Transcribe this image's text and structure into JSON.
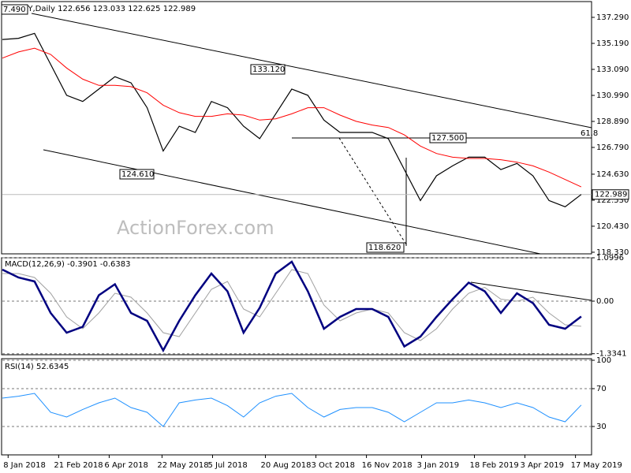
{
  "chart_data": [
    {
      "type": "line",
      "title": "EURJPY,Daily  122.656 123.033 122.625 122.989",
      "watermark": "ActionForex.com",
      "x": [
        2,
        16,
        30,
        44,
        58,
        72,
        86,
        100,
        114,
        128,
        142,
        156,
        170,
        184,
        198,
        212,
        226,
        240,
        254,
        268,
        282,
        296,
        310,
        324,
        338,
        352,
        366,
        380,
        394,
        408,
        422,
        436,
        450,
        464,
        478,
        492,
        506
      ],
      "xlim": [
        2,
        515
      ],
      "series": [
        {
          "color": "#000000",
          "values": [
            135.5,
            135.6,
            136.0,
            133.5,
            131.0,
            130.5,
            131.5,
            132.5,
            132.0,
            130.0,
            126.5,
            128.5,
            128.0,
            130.5,
            130.0,
            128.5,
            127.5,
            129.5,
            131.5,
            131.0,
            129.0,
            128.0,
            128.0,
            128.0,
            127.5,
            125.0,
            122.5,
            124.5,
            125.3,
            126.0,
            126.0,
            125.0,
            125.5,
            124.5,
            122.5,
            122.0,
            122.989
          ]
        },
        {
          "color": "#ff0000",
          "values": [
            134.0,
            134.5,
            134.8,
            134.3,
            133.2,
            132.3,
            131.8,
            131.8,
            131.7,
            131.2,
            130.2,
            129.6,
            129.3,
            129.3,
            129.5,
            129.4,
            129.0,
            129.1,
            129.5,
            130.0,
            130.0,
            129.4,
            128.9,
            128.6,
            128.4,
            127.8,
            126.9,
            126.3,
            126.0,
            125.9,
            125.9,
            125.8,
            125.6,
            125.3,
            124.8,
            124.2,
            123.6
          ]
        }
      ],
      "ylim": [
        118.2,
        138.5
      ],
      "yticks": [
        {
          "value": 137.29,
          "label": "137.290"
        },
        {
          "value": 135.19,
          "label": "135.190"
        },
        {
          "value": 133.09,
          "label": "133.090"
        },
        {
          "value": 130.99,
          "label": "130.990"
        },
        {
          "value": 128.89,
          "label": "128.890"
        },
        {
          "value": 126.79,
          "label": "126.790"
        },
        {
          "value": 124.63,
          "label": "124.630"
        },
        {
          "value": 122.53,
          "label": "122.530"
        },
        {
          "value": 120.43,
          "label": "120.430"
        },
        {
          "value": 118.33,
          "label": "118.330"
        }
      ],
      "last_price": 122.989,
      "annotations": [
        "7.490",
        "133.120",
        "124.610",
        "127.500",
        "118.620",
        "61.8"
      ]
    },
    {
      "type": "line",
      "title": "MACD(12,26,9) -0.3901 -0.6383",
      "x": [
        2,
        16,
        30,
        44,
        58,
        72,
        86,
        100,
        114,
        128,
        142,
        156,
        170,
        184,
        198,
        212,
        226,
        240,
        254,
        268,
        282,
        296,
        310,
        324,
        338,
        352,
        366,
        380,
        394,
        408,
        422,
        436,
        450,
        464,
        478,
        492,
        506
      ],
      "xlim": [
        2,
        515
      ],
      "series": [
        {
          "color": "#a0a0a0",
          "values": [
            0.7,
            0.7,
            0.6,
            0.2,
            -0.4,
            -0.7,
            -0.3,
            0.2,
            0.1,
            -0.3,
            -0.8,
            -0.9,
            -0.3,
            0.3,
            0.5,
            -0.2,
            -0.4,
            0.2,
            0.8,
            0.7,
            -0.1,
            -0.5,
            -0.3,
            -0.2,
            -0.3,
            -0.8,
            -1.0,
            -0.7,
            -0.2,
            0.2,
            0.35,
            0.05,
            0.0,
            0.1,
            -0.3,
            -0.6,
            -0.6383
          ]
        },
        {
          "color": "#000080",
          "values": [
            0.8,
            0.6,
            0.5,
            -0.3,
            -0.8,
            -0.65,
            0.15,
            0.43,
            -0.3,
            -0.5,
            -1.25,
            -0.5,
            0.15,
            0.7,
            0.25,
            -0.8,
            -0.17,
            0.7,
            1.0,
            0.25,
            -0.7,
            -0.4,
            -0.2,
            -0.2,
            -0.4,
            -1.15,
            -0.9,
            -0.4,
            0.05,
            0.47,
            0.25,
            -0.3,
            0.2,
            -0.05,
            -0.6,
            -0.7,
            -0.3901
          ]
        }
      ],
      "ylim": [
        -1.36,
        1.0996
      ],
      "yticks": [
        1.0996,
        {
          "value": 0,
          "label": "0.00"
        },
        -1.3341
      ],
      "grid": "dashed"
    },
    {
      "type": "line",
      "title": "RSI(14) 52.6345",
      "x": [
        2,
        16,
        30,
        44,
        58,
        72,
        86,
        100,
        114,
        128,
        142,
        156,
        170,
        184,
        198,
        212,
        226,
        240,
        254,
        268,
        282,
        296,
        310,
        324,
        338,
        352,
        366,
        380,
        394,
        408,
        422,
        436,
        450,
        464,
        478,
        492,
        506
      ],
      "xlim": [
        2,
        515
      ],
      "series": [
        {
          "color": "#1e90ff",
          "values": [
            60,
            62,
            65,
            45,
            40,
            48,
            55,
            60,
            50,
            45,
            30,
            55,
            58,
            60,
            52,
            40,
            55,
            62,
            65,
            50,
            40,
            48,
            50,
            50,
            45,
            35,
            45,
            55,
            55,
            58,
            55,
            50,
            55,
            50,
            40,
            35,
            52.6345
          ]
        }
      ],
      "ylim": [
        0,
        100
      ],
      "yticks": [
        100,
        70,
        30
      ],
      "grid": "dashed",
      "xticks": [
        {
          "value": 7,
          "label": "8 Jan 2018"
        },
        {
          "value": 51,
          "label": "21 Feb 2018"
        },
        {
          "value": 95,
          "label": "6 Apr 2018"
        },
        {
          "value": 141,
          "label": "22 May 2018"
        },
        {
          "value": 185,
          "label": "5 Jul 2018"
        },
        {
          "value": 231,
          "label": "20 Aug 2018"
        },
        {
          "value": 275,
          "label": "3 Oct 2018"
        },
        {
          "value": 319,
          "label": "16 Nov 2018"
        },
        {
          "value": 367,
          "label": "3 Jan 2019"
        },
        {
          "value": 413,
          "label": "18 Feb 2019"
        },
        {
          "value": 457,
          "label": "3 Apr 2019"
        },
        {
          "value": 501,
          "label": "17 May 2019"
        }
      ]
    }
  ]
}
